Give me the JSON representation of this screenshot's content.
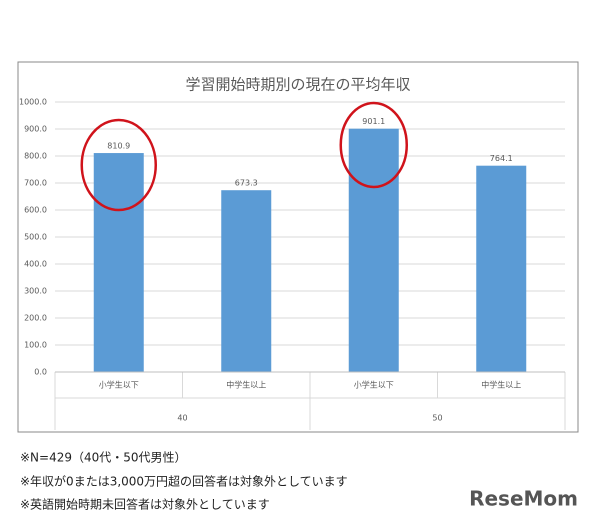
{
  "chart_data": {
    "type": "bar",
    "title": "学習開始時期別の現在の平均年収",
    "categories": [
      "小学生以下",
      "中学生以上",
      "小学生以下",
      "中学生以上"
    ],
    "groups": [
      "40",
      "50"
    ],
    "values": [
      810.9,
      673.3,
      901.1,
      764.1
    ],
    "color": "#5b9bd5",
    "ylim": [
      0,
      1000
    ],
    "yticks": [
      {
        "value": 0,
        "label": "0.0"
      },
      {
        "value": 100,
        "label": "100.0"
      },
      {
        "value": 200,
        "label": "200.0"
      },
      {
        "value": 300,
        "label": "300.0"
      },
      {
        "value": 400,
        "label": "400.0"
      },
      {
        "value": 500,
        "label": "500.0"
      },
      {
        "value": 600,
        "label": "600.0"
      },
      {
        "value": 700,
        "label": "700.0"
      },
      {
        "value": 800,
        "label": "800.0"
      },
      {
        "value": 900,
        "label": "900.0"
      },
      {
        "value": 1000,
        "label": "1000.0"
      }
    ],
    "grid": true
  },
  "notes": [
    "※N=429（40代・50代男性）",
    "※年収が0または3,000万円超の回答者は対象外としています",
    "※英語開始時期未回答者は対象外としています"
  ],
  "logo": "ReseMom"
}
